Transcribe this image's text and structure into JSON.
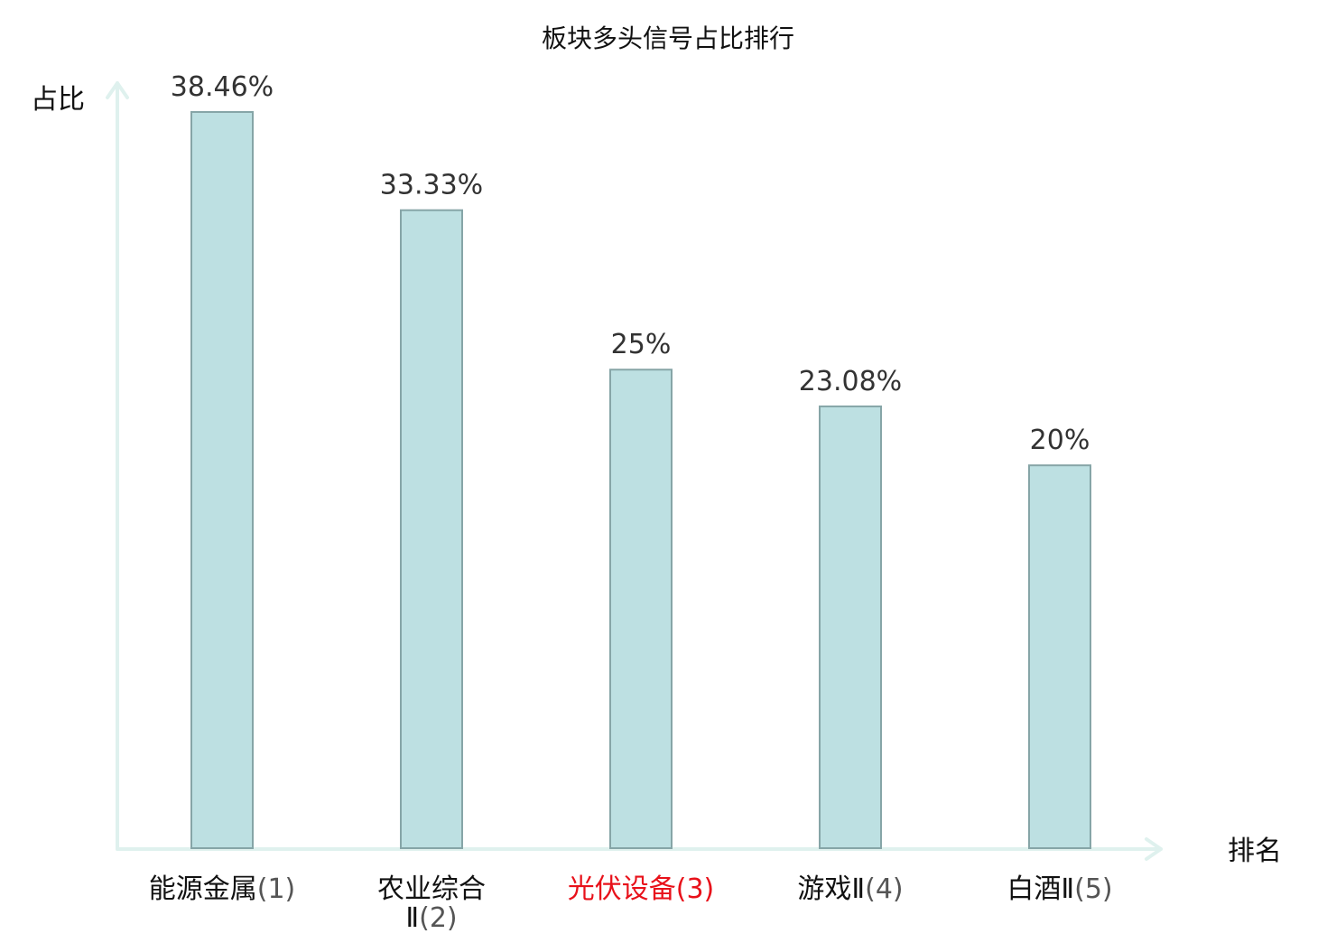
{
  "chart_data": {
    "type": "bar",
    "title": "板块多头信号占比排行",
    "xlabel": "排名",
    "ylabel": "占比",
    "categories": [
      {
        "name": "能源金属",
        "rank": "(1)",
        "highlight": false
      },
      {
        "name": "农业综合Ⅱ",
        "rank": "(2)",
        "highlight": false
      },
      {
        "name": "光伏设备",
        "rank": "(3)",
        "highlight": true
      },
      {
        "name": "游戏Ⅱ",
        "rank": "(4)",
        "highlight": false
      },
      {
        "name": "白酒Ⅱ",
        "rank": "(5)",
        "highlight": false
      }
    ],
    "values": [
      38.46,
      33.33,
      25,
      23.08,
      20
    ],
    "value_labels": [
      "38.46%",
      "33.33%",
      "25%",
      "23.08%",
      "20%"
    ],
    "ylim": [
      0,
      38.46
    ],
    "grid": false,
    "legend": "none"
  },
  "colors": {
    "bar_fill": "#bde0e2",
    "bar_stroke": "#86a5a7",
    "axis": "#dff1ee",
    "highlight_label": "#e8111a",
    "label_text": "#111111",
    "value_text": "#333333",
    "rank_text": "#555555"
  }
}
